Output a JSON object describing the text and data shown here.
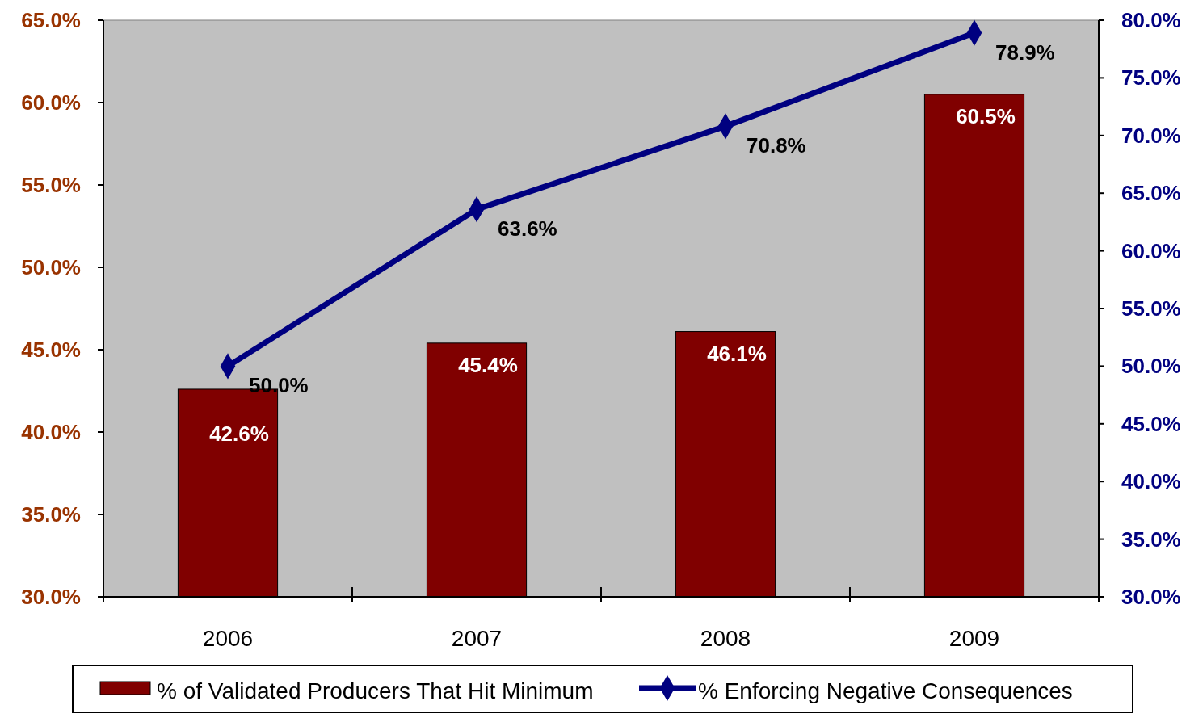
{
  "chart_data": {
    "type": "bar",
    "categories": [
      "2006",
      "2007",
      "2008",
      "2009"
    ],
    "series": [
      {
        "name": "% of Validated Producers That Hit Minimum",
        "color": "#800000",
        "values": [
          42.6,
          45.4,
          46.1,
          60.5
        ],
        "value_labels": [
          "42.6%",
          "45.4%",
          "46.1%",
          "60.5%"
        ]
      },
      {
        "name": "% Enforcing Negative Consequences",
        "type": "line",
        "axis": "y2",
        "color": "#000080",
        "values": [
          50.0,
          63.6,
          70.8,
          78.9
        ],
        "value_labels": [
          "50.0%",
          "63.6%",
          "70.8%",
          "78.9%"
        ]
      }
    ],
    "ylim": [
      30,
      65
    ],
    "yticks": [
      {
        "value": 30,
        "label": "30.0%"
      },
      {
        "value": 35,
        "label": "35.0%"
      },
      {
        "value": 40,
        "label": "40.0%"
      },
      {
        "value": 45,
        "label": "45.0%"
      },
      {
        "value": 50,
        "label": "50.0%"
      },
      {
        "value": 55,
        "label": "55.0%"
      },
      {
        "value": 60,
        "label": "60.0%"
      },
      {
        "value": 65,
        "label": "65.0%"
      }
    ],
    "y2lim": [
      30,
      80
    ],
    "y2ticks": [
      {
        "value": 30,
        "label": "30.0%"
      },
      {
        "value": 35,
        "label": "35.0%"
      },
      {
        "value": 40,
        "label": "40.0%"
      },
      {
        "value": 45,
        "label": "45.0%"
      },
      {
        "value": 50,
        "label": "50.0%"
      },
      {
        "value": 55,
        "label": "55.0%"
      },
      {
        "value": 60,
        "label": "60.0%"
      },
      {
        "value": 65,
        "label": "65.0%"
      },
      {
        "value": 70,
        "label": "70.0%"
      },
      {
        "value": 75,
        "label": "75.0%"
      },
      {
        "value": 80,
        "label": "80.0%"
      }
    ],
    "marker": "diamond",
    "legend": "bottom"
  }
}
